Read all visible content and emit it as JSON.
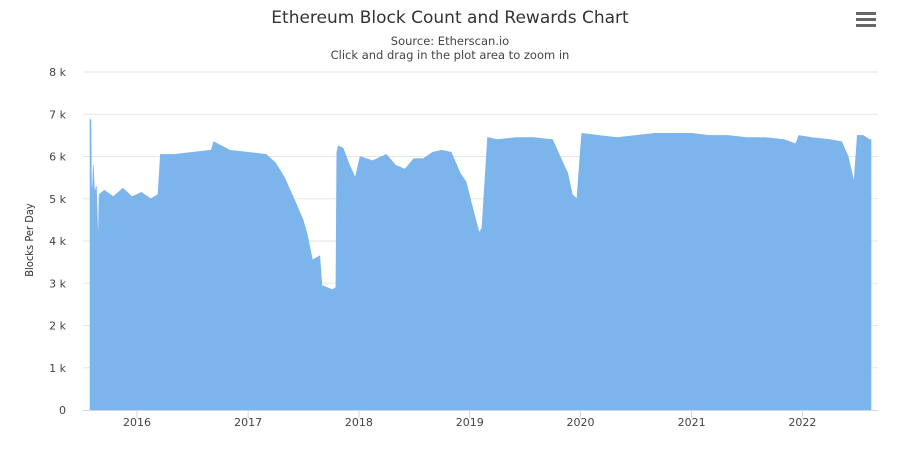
{
  "header": {
    "title": "Ethereum Block Count and Rewards Chart",
    "source": "Source: Etherscan.io",
    "hint": "Click and drag in the plot area to zoom in",
    "menu_icon": "hamburger-menu-icon"
  },
  "colors": {
    "area_fill": "#7cb5ec",
    "gridline": "#e6e6e6",
    "axis_line": "#ccd6eb"
  },
  "chart_data": {
    "type": "area",
    "title": "Ethereum Block Count and Rewards Chart",
    "subtitle": "Source: Etherscan.io",
    "xlabel": "",
    "ylabel": "Blocks Per Day",
    "x_tick_labels": [
      "2016",
      "2017",
      "2018",
      "2019",
      "2020",
      "2021",
      "2022"
    ],
    "x_tick_years": [
      2016,
      2017,
      2018,
      2019,
      2020,
      2021,
      2022
    ],
    "xlim": [
      "2015-07-30",
      "2022-08-15"
    ],
    "y_tick_labels": [
      "0",
      "1 k",
      "2 k",
      "3 k",
      "4 k",
      "5 k",
      "6 k",
      "7 k",
      "8 k"
    ],
    "ylim": [
      0,
      8000
    ],
    "grid": true,
    "legend": "none",
    "series": [
      {
        "name": "",
        "points": [
          [
            "2015-07-30",
            6900
          ],
          [
            "2015-08-02",
            6850
          ],
          [
            "2015-08-04",
            5300
          ],
          [
            "2015-08-07",
            5200
          ],
          [
            "2015-08-10",
            5800
          ],
          [
            "2015-08-14",
            5150
          ],
          [
            "2015-08-20",
            5300
          ],
          [
            "2015-08-26",
            3900
          ],
          [
            "2015-08-29",
            5100
          ],
          [
            "2015-09-15",
            5200
          ],
          [
            "2015-10-15",
            5050
          ],
          [
            "2015-11-15",
            5250
          ],
          [
            "2015-12-15",
            5050
          ],
          [
            "2016-01-15",
            5150
          ],
          [
            "2016-02-15",
            5000
          ],
          [
            "2016-03-10",
            5100
          ],
          [
            "2016-03-18",
            6050
          ],
          [
            "2016-05-01",
            6050
          ],
          [
            "2016-07-01",
            6100
          ],
          [
            "2016-09-01",
            6150
          ],
          [
            "2016-09-10",
            6350
          ],
          [
            "2016-11-01",
            6150
          ],
          [
            "2017-01-01",
            6100
          ],
          [
            "2017-03-01",
            6050
          ],
          [
            "2017-04-01",
            5850
          ],
          [
            "2017-05-01",
            5500
          ],
          [
            "2017-06-01",
            5000
          ],
          [
            "2017-07-01",
            4500
          ],
          [
            "2017-07-15",
            4150
          ],
          [
            "2017-08-01",
            3550
          ],
          [
            "2017-08-25",
            3650
          ],
          [
            "2017-09-01",
            2950
          ],
          [
            "2017-10-05",
            2850
          ],
          [
            "2017-10-17",
            2900
          ],
          [
            "2017-10-20",
            6100
          ],
          [
            "2017-10-25",
            6250
          ],
          [
            "2017-11-10",
            6200
          ],
          [
            "2017-12-01",
            5800
          ],
          [
            "2017-12-20",
            5500
          ],
          [
            "2018-01-05",
            6000
          ],
          [
            "2018-02-15",
            5900
          ],
          [
            "2018-04-01",
            6050
          ],
          [
            "2018-05-01",
            5800
          ],
          [
            "2018-06-01",
            5700
          ],
          [
            "2018-07-01",
            5950
          ],
          [
            "2018-08-01",
            5950
          ],
          [
            "2018-09-01",
            6100
          ],
          [
            "2018-10-01",
            6150
          ],
          [
            "2018-11-01",
            6100
          ],
          [
            "2018-12-01",
            5600
          ],
          [
            "2018-12-20",
            5400
          ],
          [
            "2019-01-10",
            4800
          ],
          [
            "2019-02-01",
            4200
          ],
          [
            "2019-02-10",
            4300
          ],
          [
            "2019-03-01",
            6450
          ],
          [
            "2019-04-01",
            6400
          ],
          [
            "2019-06-01",
            6450
          ],
          [
            "2019-08-01",
            6450
          ],
          [
            "2019-10-01",
            6400
          ],
          [
            "2019-11-01",
            5900
          ],
          [
            "2019-11-20",
            5600
          ],
          [
            "2019-12-05",
            5100
          ],
          [
            "2019-12-20",
            5000
          ],
          [
            "2020-01-05",
            6550
          ],
          [
            "2020-03-01",
            6500
          ],
          [
            "2020-05-01",
            6450
          ],
          [
            "2020-07-01",
            6500
          ],
          [
            "2020-09-01",
            6550
          ],
          [
            "2020-11-01",
            6550
          ],
          [
            "2021-01-01",
            6550
          ],
          [
            "2021-03-01",
            6500
          ],
          [
            "2021-05-01",
            6500
          ],
          [
            "2021-07-01",
            6450
          ],
          [
            "2021-09-01",
            6450
          ],
          [
            "2021-11-01",
            6400
          ],
          [
            "2021-12-10",
            6300
          ],
          [
            "2021-12-20",
            6500
          ],
          [
            "2022-02-01",
            6450
          ],
          [
            "2022-04-01",
            6400
          ],
          [
            "2022-05-10",
            6350
          ],
          [
            "2022-06-01",
            6000
          ],
          [
            "2022-06-20",
            5400
          ],
          [
            "2022-07-01",
            6500
          ],
          [
            "2022-07-20",
            6500
          ],
          [
            "2022-08-10",
            6400
          ],
          [
            "2022-08-15",
            6400
          ]
        ]
      }
    ]
  }
}
